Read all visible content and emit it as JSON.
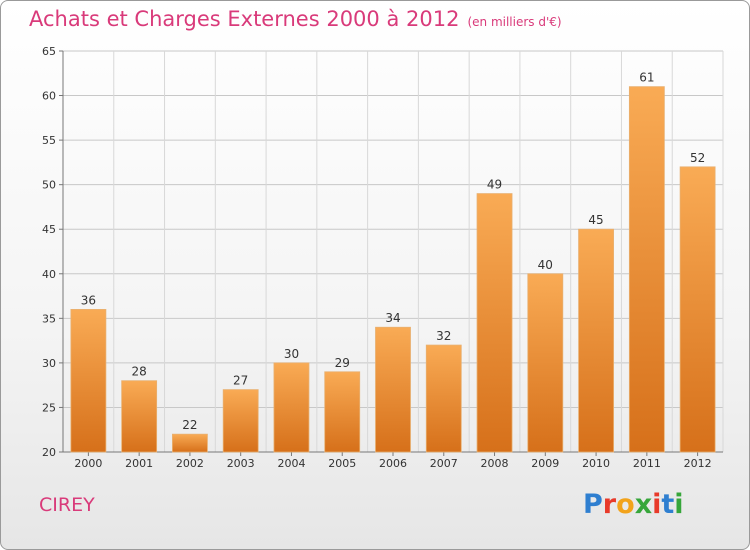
{
  "title": "Achats et Charges Externes 2000 à 2012",
  "unit": "(en milliers d'€)",
  "commune": "CIREY",
  "logo": {
    "letters": [
      "P",
      "r",
      "o",
      "x",
      "i",
      "t",
      "i"
    ],
    "colors": [
      "#2f7fd0",
      "#e83a2a",
      "#f2a31b",
      "#36a63a",
      "#e83a2a",
      "#2f7fd0",
      "#36a63a"
    ]
  },
  "colors": {
    "title": "#d93a7a",
    "bar_light": "#f8a953",
    "bar_dark": "#d9731b"
  },
  "chart_data": {
    "type": "bar",
    "categories": [
      "2000",
      "2001",
      "2002",
      "2003",
      "2004",
      "2005",
      "2006",
      "2007",
      "2008",
      "2009",
      "2010",
      "2011",
      "2012"
    ],
    "values": [
      36,
      28,
      22,
      27,
      30,
      29,
      34,
      32,
      49,
      40,
      45,
      61,
      52
    ],
    "ylim": [
      20,
      65
    ],
    "yticks": [
      20,
      25,
      30,
      35,
      40,
      45,
      50,
      55,
      60,
      65
    ],
    "grid": true
  }
}
